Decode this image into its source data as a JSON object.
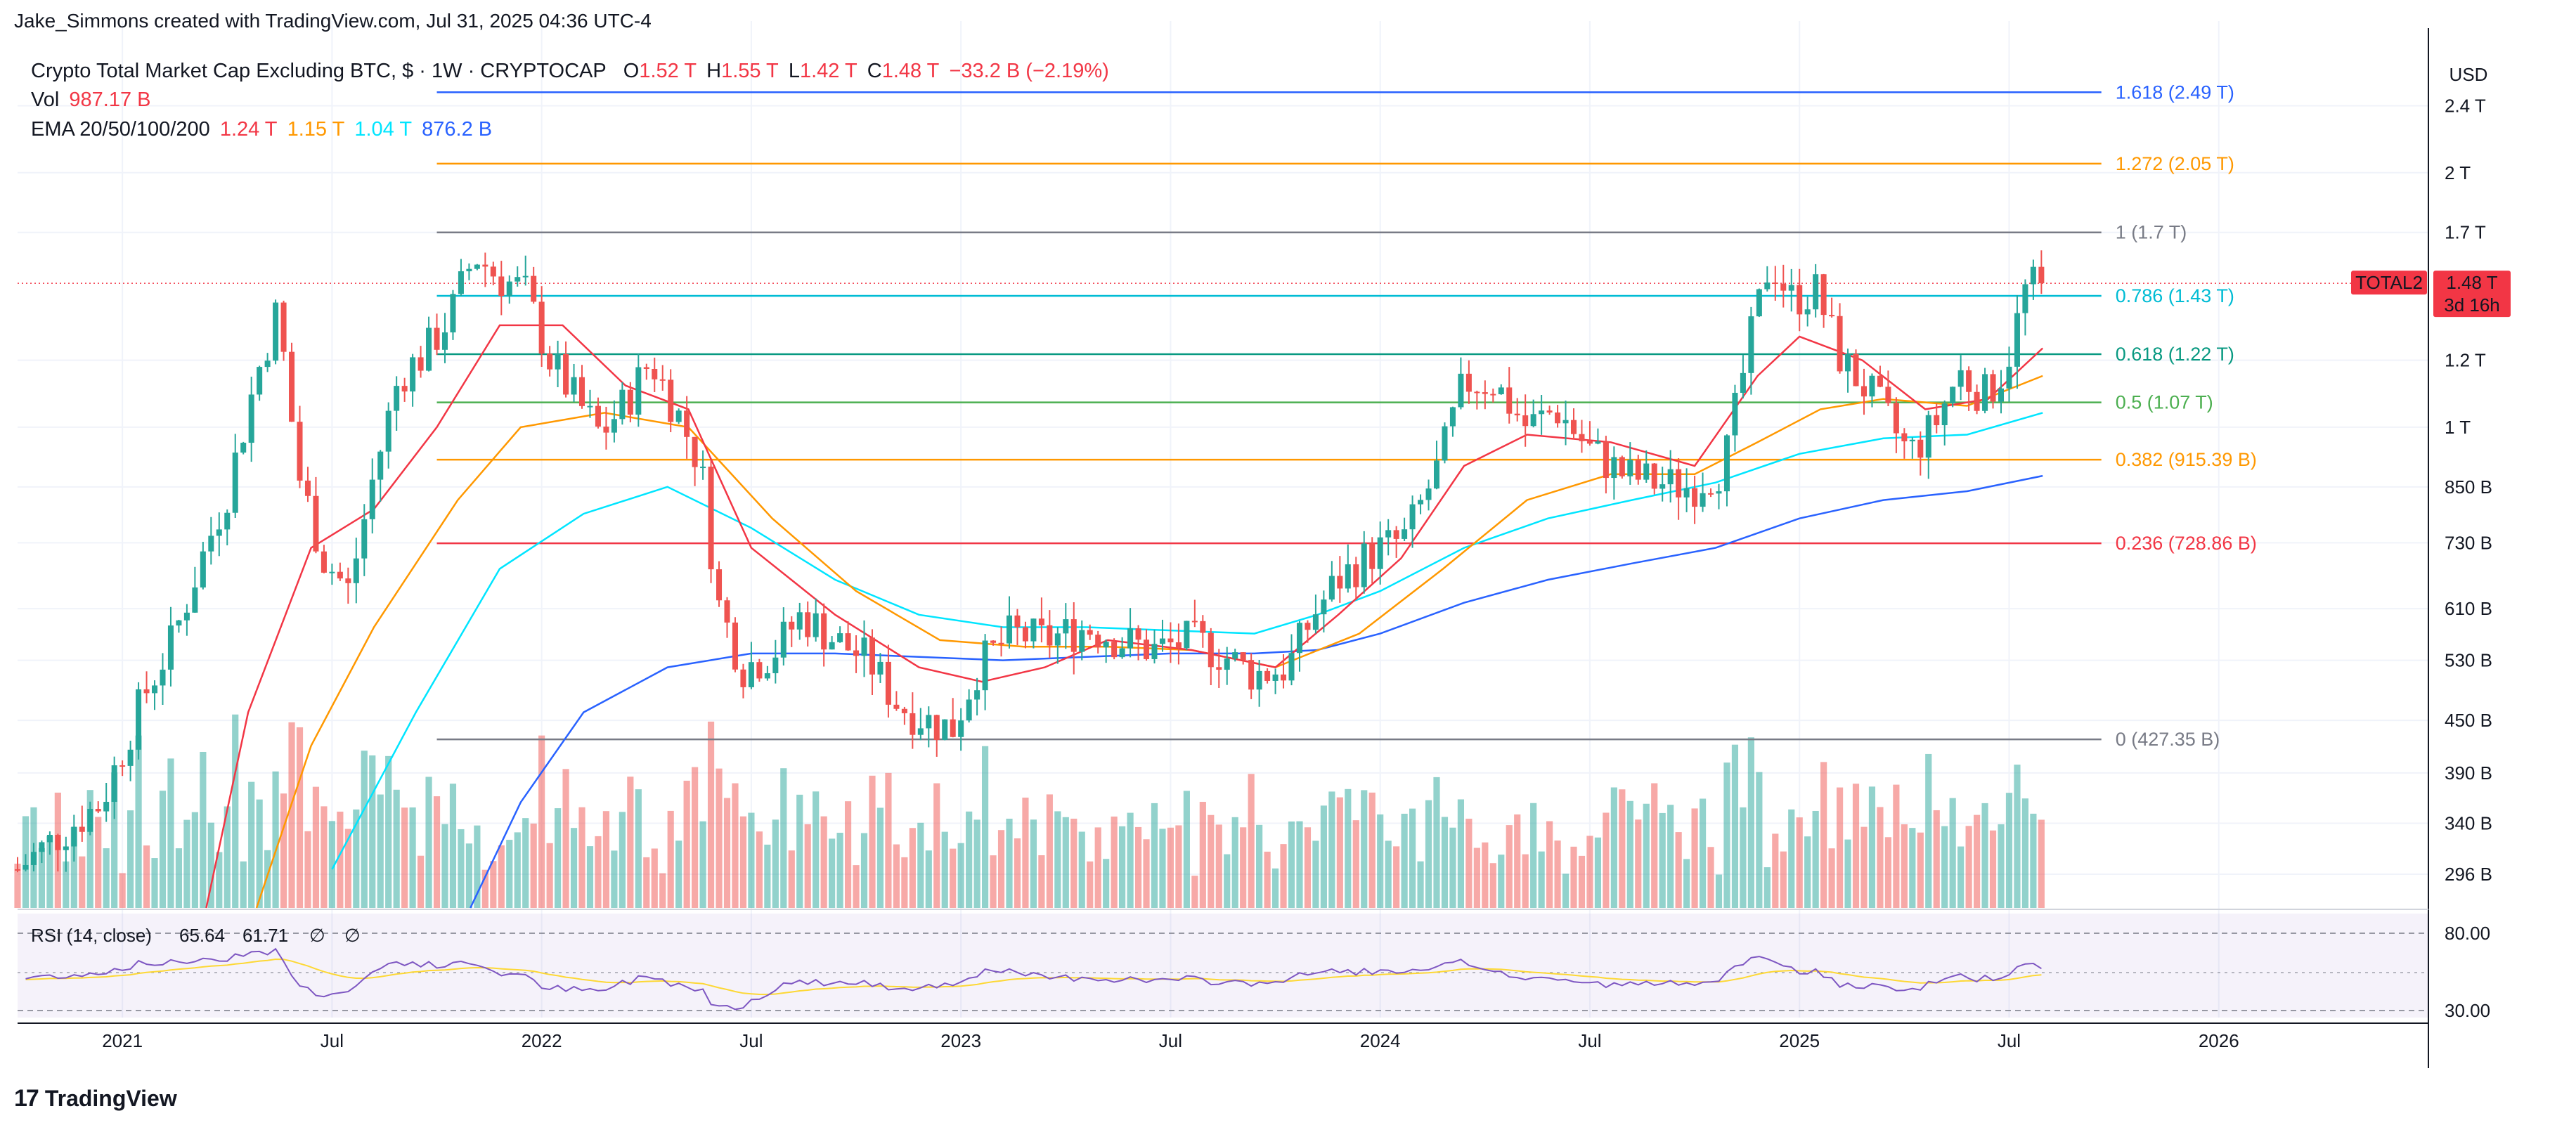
{
  "header": {
    "attribution": "Jake_Simmons created with TradingView.com, Jul 31, 2025 04:36 UTC-4"
  },
  "legend": {
    "symbol": "Crypto Total Market Cap Excluding BTC, $ · 1W · CRYPTOCAP",
    "open_label": "O",
    "open": "1.52 T",
    "high_label": "H",
    "high": "1.55 T",
    "low_label": "L",
    "low": "1.42 T",
    "close_label": "C",
    "close": "1.48 T",
    "change": "−33.2 B (−2.19%)",
    "vol_label": "Vol",
    "vol": "987.17 B",
    "ema_label": "EMA 20/50/100/200",
    "ema20": "1.24 T",
    "ema50": "1.15 T",
    "ema100": "1.04 T",
    "ema200": "876.2 B"
  },
  "price_tag": {
    "symbol": "TOTAL2",
    "price": "1.48 T",
    "countdown": "3d 16h"
  },
  "rsi_legend": {
    "label": "RSI (14, close)",
    "value": "65.64",
    "ma_value": "61.71",
    "na1": "∅",
    "na2": "∅"
  },
  "footer": {
    "brand": "TradingView"
  },
  "colors": {
    "up": "#26a69a",
    "down": "#ef5350",
    "ema20": "#f23645",
    "ema50": "#ff9800",
    "ema100": "#00e5ff",
    "ema200": "#2962ff",
    "rsi": "#7e57c2",
    "rsi_ma": "#fdd835"
  },
  "chart_data": {
    "type": "candlestick",
    "title": "Crypto Total Market Cap Excluding BTC, $ · 1W · CRYPTOCAP",
    "currency": "USD",
    "price_scale": "log",
    "ylim": [
      270000000000.0,
      2800000000000.0
    ],
    "y_ticks": [
      {
        "label": "2.4 T",
        "value": 2400000000000.0
      },
      {
        "label": "2 T",
        "value": 2000000000000.0
      },
      {
        "label": "1.7 T",
        "value": 1700000000000.0
      },
      {
        "label": "1.2 T",
        "value": 1200000000000.0
      },
      {
        "label": "1 T",
        "value": 1000000000000.0
      },
      {
        "label": "850 B",
        "value": 850000000000.0
      },
      {
        "label": "730 B",
        "value": 730000000000.0
      },
      {
        "label": "610 B",
        "value": 610000000000.0
      },
      {
        "label": "530 B",
        "value": 530000000000.0
      },
      {
        "label": "450 B",
        "value": 450000000000.0
      },
      {
        "label": "390 B",
        "value": 390000000000.0
      },
      {
        "label": "340 B",
        "value": 340000000000.0
      },
      {
        "label": "296 B",
        "value": 296000000000.0
      }
    ],
    "x_ticks": [
      {
        "label": "2021",
        "t": 2021.0
      },
      {
        "label": "Jul",
        "t": 2021.5
      },
      {
        "label": "2022",
        "t": 2022.0
      },
      {
        "label": "Jul",
        "t": 2022.5
      },
      {
        "label": "2023",
        "t": 2023.0
      },
      {
        "label": "Jul",
        "t": 2023.5
      },
      {
        "label": "2024",
        "t": 2024.0
      },
      {
        "label": "Jul",
        "t": 2024.5
      },
      {
        "label": "2025",
        "t": 2025.0
      },
      {
        "label": "Jul",
        "t": 2025.5
      },
      {
        "label": "2026",
        "t": 2026.0
      }
    ],
    "x_range": [
      2020.75,
      2026.5
    ],
    "fibonacci": [
      {
        "level": "1.618",
        "label": "1.618 (2.49 T)",
        "value": 2490000000000.0,
        "color": "#2962ff"
      },
      {
        "level": "1.272",
        "label": "1.272 (2.05 T)",
        "value": 2050000000000.0,
        "color": "#ff9800"
      },
      {
        "level": "1",
        "label": "1 (1.7 T)",
        "value": 1700000000000.0,
        "color": "#787b86"
      },
      {
        "level": "0.786",
        "label": "0.786 (1.43 T)",
        "value": 1430000000000.0,
        "color": "#00bcd4"
      },
      {
        "level": "0.618",
        "label": "0.618 (1.22 T)",
        "value": 1220000000000.0,
        "color": "#089981"
      },
      {
        "level": "0.5",
        "label": "0.5 (1.07 T)",
        "value": 1070000000000.0,
        "color": "#4caf50"
      },
      {
        "level": "0.382",
        "label": "0.382 (915.39 B)",
        "value": 915390000000.0,
        "color": "#ff9800"
      },
      {
        "level": "0.236",
        "label": "0.236 (728.86 B)",
        "value": 728860000000.0,
        "color": "#f23645"
      },
      {
        "level": "0",
        "label": "0 (427.35 B)",
        "value": 427350000000.0,
        "color": "#787b86"
      }
    ],
    "fib_start_t": 2021.75,
    "last_price": 1480000000000.0,
    "price_path": [
      [
        2020.75,
        300
      ],
      [
        2020.85,
        330
      ],
      [
        2020.95,
        360
      ],
      [
        2021.05,
        480
      ],
      [
        2021.12,
        560
      ],
      [
        2021.18,
        680
      ],
      [
        2021.25,
        840
      ],
      [
        2021.32,
        1150
      ],
      [
        2021.37,
        1380
      ],
      [
        2021.42,
        880
      ],
      [
        2021.48,
        700
      ],
      [
        2021.54,
        640
      ],
      [
        2021.6,
        880
      ],
      [
        2021.66,
        1150
      ],
      [
        2021.72,
        1220
      ],
      [
        2021.78,
        1350
      ],
      [
        2021.84,
        1600
      ],
      [
        2021.9,
        1500
      ],
      [
        2021.96,
        1450
      ],
      [
        2022.02,
        1200
      ],
      [
        2022.08,
        1080
      ],
      [
        2022.14,
        980
      ],
      [
        2022.2,
        1070
      ],
      [
        2022.26,
        1200
      ],
      [
        2022.32,
        1050
      ],
      [
        2022.38,
        900
      ],
      [
        2022.42,
        620
      ],
      [
        2022.48,
        520
      ],
      [
        2022.55,
        540
      ],
      [
        2022.62,
        600
      ],
      [
        2022.7,
        560
      ],
      [
        2022.78,
        530
      ],
      [
        2022.85,
        470
      ],
      [
        2022.92,
        450
      ],
      [
        2022.98,
        440
      ],
      [
        2023.04,
        520
      ],
      [
        2023.12,
        570
      ],
      [
        2023.2,
        560
      ],
      [
        2023.3,
        580
      ],
      [
        2023.38,
        560
      ],
      [
        2023.46,
        545
      ],
      [
        2023.55,
        560
      ],
      [
        2023.62,
        540
      ],
      [
        2023.7,
        510
      ],
      [
        2023.78,
        520
      ],
      [
        2023.84,
        600
      ],
      [
        2023.9,
        660
      ],
      [
        2023.98,
        710
      ],
      [
        2024.06,
        740
      ],
      [
        2024.14,
        900
      ],
      [
        2024.2,
        1130
      ],
      [
        2024.27,
        1130
      ],
      [
        2024.35,
        1000
      ],
      [
        2024.42,
        1050
      ],
      [
        2024.5,
        940
      ],
      [
        2024.58,
        880
      ],
      [
        2024.66,
        860
      ],
      [
        2024.74,
        850
      ],
      [
        2024.82,
        900
      ],
      [
        2024.88,
        1250
      ],
      [
        2024.93,
        1580
      ],
      [
        2024.98,
        1420
      ],
      [
        2025.04,
        1450
      ],
      [
        2025.1,
        1200
      ],
      [
        2025.18,
        1080
      ],
      [
        2025.26,
        930
      ],
      [
        2025.32,
        1000
      ],
      [
        2025.38,
        1160
      ],
      [
        2025.44,
        1090
      ],
      [
        2025.49,
        1170
      ],
      [
        2025.54,
        1460
      ],
      [
        2025.58,
        1480
      ]
    ],
    "ema20_path": [
      [
        2021.2,
        270
      ],
      [
        2021.3,
        460
      ],
      [
        2021.45,
        720
      ],
      [
        2021.6,
        800
      ],
      [
        2021.75,
        1000
      ],
      [
        2021.9,
        1320
      ],
      [
        2022.05,
        1320
      ],
      [
        2022.2,
        1120
      ],
      [
        2022.35,
        1050
      ],
      [
        2022.5,
        720
      ],
      [
        2022.7,
        600
      ],
      [
        2022.9,
        520
      ],
      [
        2023.05,
        500
      ],
      [
        2023.2,
        520
      ],
      [
        2023.35,
        560
      ],
      [
        2023.55,
        545
      ],
      [
        2023.75,
        520
      ],
      [
        2023.9,
        600
      ],
      [
        2024.05,
        700
      ],
      [
        2024.2,
        900
      ],
      [
        2024.35,
        980
      ],
      [
        2024.55,
        960
      ],
      [
        2024.75,
        900
      ],
      [
        2024.9,
        1150
      ],
      [
        2025.0,
        1280
      ],
      [
        2025.15,
        1200
      ],
      [
        2025.3,
        1050
      ],
      [
        2025.45,
        1080
      ],
      [
        2025.58,
        1240
      ]
    ],
    "ema50_path": [
      [
        2021.32,
        270
      ],
      [
        2021.45,
        420
      ],
      [
        2021.6,
        580
      ],
      [
        2021.8,
        820
      ],
      [
        2021.95,
        1000
      ],
      [
        2022.15,
        1040
      ],
      [
        2022.35,
        1000
      ],
      [
        2022.55,
        780
      ],
      [
        2022.75,
        640
      ],
      [
        2022.95,
        560
      ],
      [
        2023.15,
        550
      ],
      [
        2023.35,
        550
      ],
      [
        2023.55,
        545
      ],
      [
        2023.75,
        520
      ],
      [
        2023.95,
        570
      ],
      [
        2024.15,
        680
      ],
      [
        2024.35,
        820
      ],
      [
        2024.55,
        880
      ],
      [
        2024.75,
        880
      ],
      [
        2024.9,
        960
      ],
      [
        2025.05,
        1050
      ],
      [
        2025.2,
        1080
      ],
      [
        2025.4,
        1060
      ],
      [
        2025.58,
        1150
      ]
    ],
    "ema100_path": [
      [
        2021.5,
        300
      ],
      [
        2021.7,
        460
      ],
      [
        2021.9,
        680
      ],
      [
        2022.1,
        790
      ],
      [
        2022.3,
        850
      ],
      [
        2022.5,
        760
      ],
      [
        2022.7,
        660
      ],
      [
        2022.9,
        600
      ],
      [
        2023.1,
        580
      ],
      [
        2023.3,
        580
      ],
      [
        2023.5,
        575
      ],
      [
        2023.7,
        570
      ],
      [
        2023.85,
        600
      ],
      [
        2024.0,
        640
      ],
      [
        2024.2,
        720
      ],
      [
        2024.4,
        780
      ],
      [
        2024.6,
        820
      ],
      [
        2024.8,
        860
      ],
      [
        2025.0,
        930
      ],
      [
        2025.2,
        970
      ],
      [
        2025.4,
        980
      ],
      [
        2025.58,
        1040
      ]
    ],
    "ema200_path": [
      [
        2021.83,
        270
      ],
      [
        2021.95,
        360
      ],
      [
        2022.1,
        460
      ],
      [
        2022.3,
        520
      ],
      [
        2022.5,
        540
      ],
      [
        2022.7,
        540
      ],
      [
        2022.9,
        535
      ],
      [
        2023.1,
        530
      ],
      [
        2023.3,
        535
      ],
      [
        2023.5,
        540
      ],
      [
        2023.7,
        540
      ],
      [
        2023.85,
        545
      ],
      [
        2024.0,
        570
      ],
      [
        2024.2,
        620
      ],
      [
        2024.4,
        660
      ],
      [
        2024.6,
        690
      ],
      [
        2024.8,
        720
      ],
      [
        2025.0,
        780
      ],
      [
        2025.2,
        820
      ],
      [
        2025.4,
        840
      ],
      [
        2025.58,
        876
      ]
    ],
    "volume": {
      "last": "987.17 B"
    },
    "rsi": {
      "period": 14,
      "value": 65.64,
      "upper": 80,
      "lower": 30,
      "y_ticks": [
        {
          "label": "80.00",
          "value": 80
        },
        {
          "label": "30.00",
          "value": 30
        }
      ]
    }
  }
}
